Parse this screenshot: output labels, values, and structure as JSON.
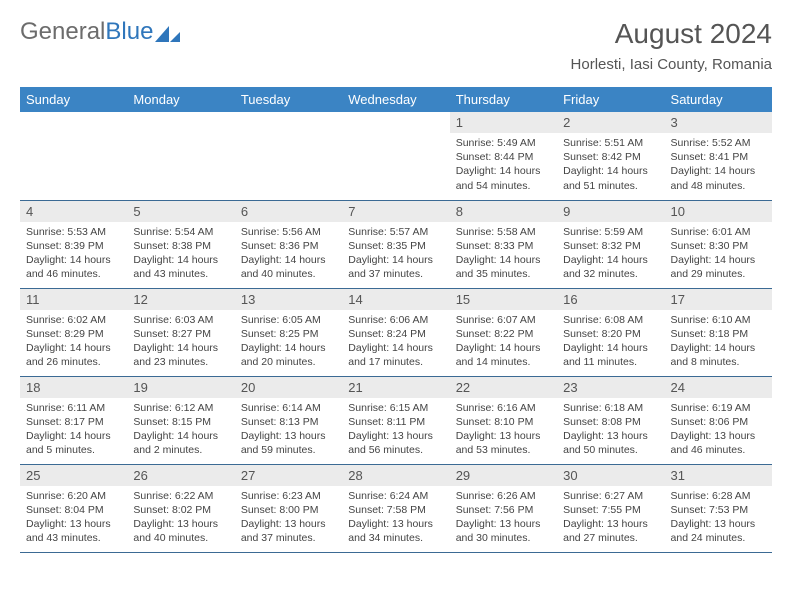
{
  "brand": {
    "part1": "General",
    "part2": "Blue"
  },
  "header": {
    "title": "August 2024",
    "location": "Horlesti, Iasi County, Romania"
  },
  "colors": {
    "header_bg": "#3b84c4",
    "header_text": "#ffffff",
    "daynum_bg": "#ebebeb",
    "row_border": "#3b6a94",
    "brand_gray": "#6c6c6c",
    "brand_blue": "#2f76bb",
    "text": "#444444"
  },
  "typography": {
    "title_fontsize": 28,
    "location_fontsize": 15,
    "th_fontsize": 13,
    "daynum_fontsize": 13,
    "cell_fontsize": 10.5
  },
  "weekdays": [
    "Sunday",
    "Monday",
    "Tuesday",
    "Wednesday",
    "Thursday",
    "Friday",
    "Saturday"
  ],
  "weeks": [
    [
      {
        "n": "",
        "sr": "",
        "ss": "",
        "dl": ""
      },
      {
        "n": "",
        "sr": "",
        "ss": "",
        "dl": ""
      },
      {
        "n": "",
        "sr": "",
        "ss": "",
        "dl": ""
      },
      {
        "n": "",
        "sr": "",
        "ss": "",
        "dl": ""
      },
      {
        "n": "1",
        "sr": "Sunrise: 5:49 AM",
        "ss": "Sunset: 8:44 PM",
        "dl": "Daylight: 14 hours and 54 minutes."
      },
      {
        "n": "2",
        "sr": "Sunrise: 5:51 AM",
        "ss": "Sunset: 8:42 PM",
        "dl": "Daylight: 14 hours and 51 minutes."
      },
      {
        "n": "3",
        "sr": "Sunrise: 5:52 AM",
        "ss": "Sunset: 8:41 PM",
        "dl": "Daylight: 14 hours and 48 minutes."
      }
    ],
    [
      {
        "n": "4",
        "sr": "Sunrise: 5:53 AM",
        "ss": "Sunset: 8:39 PM",
        "dl": "Daylight: 14 hours and 46 minutes."
      },
      {
        "n": "5",
        "sr": "Sunrise: 5:54 AM",
        "ss": "Sunset: 8:38 PM",
        "dl": "Daylight: 14 hours and 43 minutes."
      },
      {
        "n": "6",
        "sr": "Sunrise: 5:56 AM",
        "ss": "Sunset: 8:36 PM",
        "dl": "Daylight: 14 hours and 40 minutes."
      },
      {
        "n": "7",
        "sr": "Sunrise: 5:57 AM",
        "ss": "Sunset: 8:35 PM",
        "dl": "Daylight: 14 hours and 37 minutes."
      },
      {
        "n": "8",
        "sr": "Sunrise: 5:58 AM",
        "ss": "Sunset: 8:33 PM",
        "dl": "Daylight: 14 hours and 35 minutes."
      },
      {
        "n": "9",
        "sr": "Sunrise: 5:59 AM",
        "ss": "Sunset: 8:32 PM",
        "dl": "Daylight: 14 hours and 32 minutes."
      },
      {
        "n": "10",
        "sr": "Sunrise: 6:01 AM",
        "ss": "Sunset: 8:30 PM",
        "dl": "Daylight: 14 hours and 29 minutes."
      }
    ],
    [
      {
        "n": "11",
        "sr": "Sunrise: 6:02 AM",
        "ss": "Sunset: 8:29 PM",
        "dl": "Daylight: 14 hours and 26 minutes."
      },
      {
        "n": "12",
        "sr": "Sunrise: 6:03 AM",
        "ss": "Sunset: 8:27 PM",
        "dl": "Daylight: 14 hours and 23 minutes."
      },
      {
        "n": "13",
        "sr": "Sunrise: 6:05 AM",
        "ss": "Sunset: 8:25 PM",
        "dl": "Daylight: 14 hours and 20 minutes."
      },
      {
        "n": "14",
        "sr": "Sunrise: 6:06 AM",
        "ss": "Sunset: 8:24 PM",
        "dl": "Daylight: 14 hours and 17 minutes."
      },
      {
        "n": "15",
        "sr": "Sunrise: 6:07 AM",
        "ss": "Sunset: 8:22 PM",
        "dl": "Daylight: 14 hours and 14 minutes."
      },
      {
        "n": "16",
        "sr": "Sunrise: 6:08 AM",
        "ss": "Sunset: 8:20 PM",
        "dl": "Daylight: 14 hours and 11 minutes."
      },
      {
        "n": "17",
        "sr": "Sunrise: 6:10 AM",
        "ss": "Sunset: 8:18 PM",
        "dl": "Daylight: 14 hours and 8 minutes."
      }
    ],
    [
      {
        "n": "18",
        "sr": "Sunrise: 6:11 AM",
        "ss": "Sunset: 8:17 PM",
        "dl": "Daylight: 14 hours and 5 minutes."
      },
      {
        "n": "19",
        "sr": "Sunrise: 6:12 AM",
        "ss": "Sunset: 8:15 PM",
        "dl": "Daylight: 14 hours and 2 minutes."
      },
      {
        "n": "20",
        "sr": "Sunrise: 6:14 AM",
        "ss": "Sunset: 8:13 PM",
        "dl": "Daylight: 13 hours and 59 minutes."
      },
      {
        "n": "21",
        "sr": "Sunrise: 6:15 AM",
        "ss": "Sunset: 8:11 PM",
        "dl": "Daylight: 13 hours and 56 minutes."
      },
      {
        "n": "22",
        "sr": "Sunrise: 6:16 AM",
        "ss": "Sunset: 8:10 PM",
        "dl": "Daylight: 13 hours and 53 minutes."
      },
      {
        "n": "23",
        "sr": "Sunrise: 6:18 AM",
        "ss": "Sunset: 8:08 PM",
        "dl": "Daylight: 13 hours and 50 minutes."
      },
      {
        "n": "24",
        "sr": "Sunrise: 6:19 AM",
        "ss": "Sunset: 8:06 PM",
        "dl": "Daylight: 13 hours and 46 minutes."
      }
    ],
    [
      {
        "n": "25",
        "sr": "Sunrise: 6:20 AM",
        "ss": "Sunset: 8:04 PM",
        "dl": "Daylight: 13 hours and 43 minutes."
      },
      {
        "n": "26",
        "sr": "Sunrise: 6:22 AM",
        "ss": "Sunset: 8:02 PM",
        "dl": "Daylight: 13 hours and 40 minutes."
      },
      {
        "n": "27",
        "sr": "Sunrise: 6:23 AM",
        "ss": "Sunset: 8:00 PM",
        "dl": "Daylight: 13 hours and 37 minutes."
      },
      {
        "n": "28",
        "sr": "Sunrise: 6:24 AM",
        "ss": "Sunset: 7:58 PM",
        "dl": "Daylight: 13 hours and 34 minutes."
      },
      {
        "n": "29",
        "sr": "Sunrise: 6:26 AM",
        "ss": "Sunset: 7:56 PM",
        "dl": "Daylight: 13 hours and 30 minutes."
      },
      {
        "n": "30",
        "sr": "Sunrise: 6:27 AM",
        "ss": "Sunset: 7:55 PM",
        "dl": "Daylight: 13 hours and 27 minutes."
      },
      {
        "n": "31",
        "sr": "Sunrise: 6:28 AM",
        "ss": "Sunset: 7:53 PM",
        "dl": "Daylight: 13 hours and 24 minutes."
      }
    ]
  ]
}
